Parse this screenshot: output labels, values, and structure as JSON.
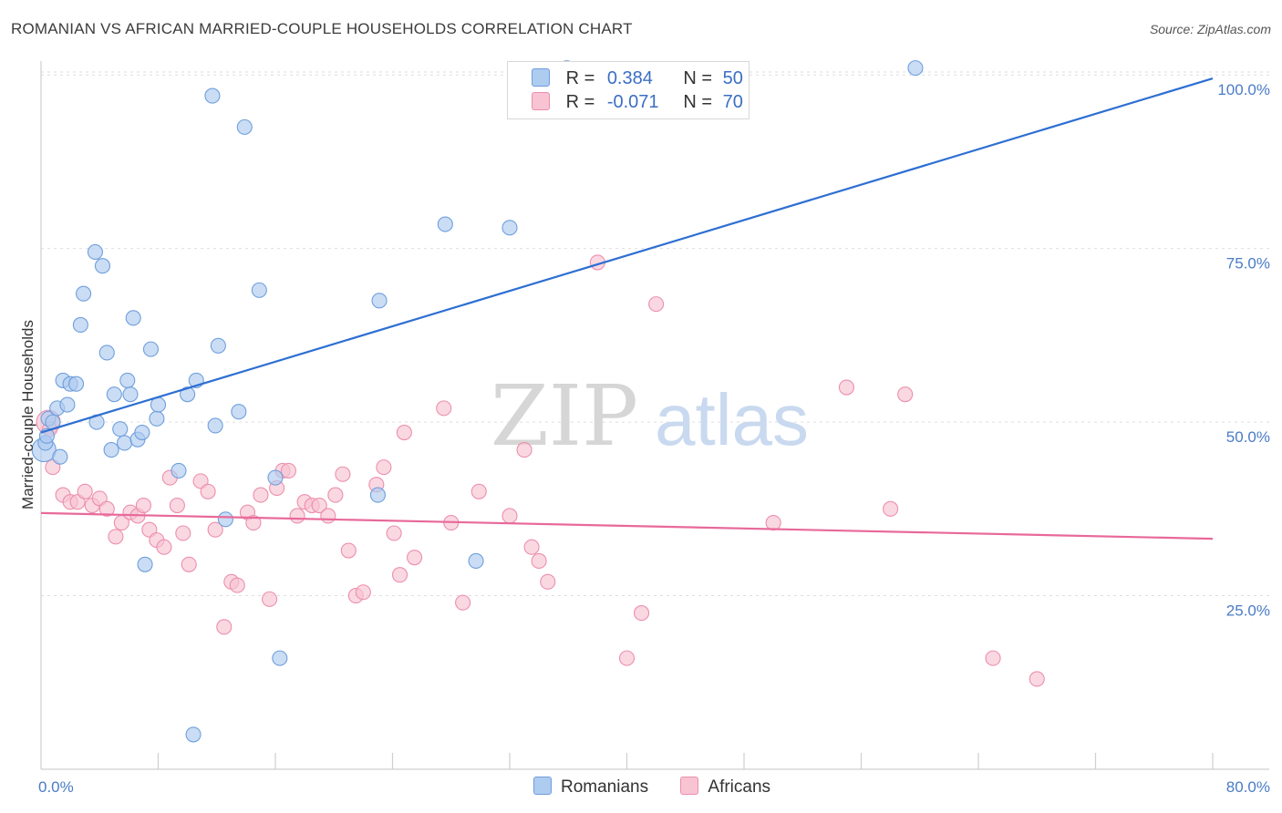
{
  "header": {
    "title": "ROMANIAN VS AFRICAN MARRIED-COUPLE HOUSEHOLDS CORRELATION CHART",
    "source": "Source: ZipAtlas.com"
  },
  "legend_top": {
    "rows": [
      {
        "r_label": "R =",
        "r_value": "0.384",
        "n_label": "N =",
        "n_value": "50"
      },
      {
        "r_label": "R =",
        "r_value": "-0.071",
        "n_label": "N =",
        "n_value": "70"
      }
    ]
  },
  "legend_bottom": {
    "series1": "Romanians",
    "series2": "Africans"
  },
  "watermark": {
    "zip": "ZIP",
    "atlas": "atlas"
  },
  "colors": {
    "romanians_fill": "#aecbf0",
    "romanians_stroke": "#6f9fdc",
    "romanians_line": "#2d6fd2",
    "africans_fill": "#f8c3d3",
    "africans_stroke": "#ec8fad",
    "africans_line": "#e8699a",
    "grid": "#dedede",
    "tick_text": "#4a7cc7"
  },
  "chart_data": {
    "type": "scatter",
    "title": "ROMANIAN VS AFRICAN MARRIED-COUPLE HOUSEHOLDS CORRELATION CHART",
    "xlabel": "",
    "ylabel": "Married-couple Households",
    "xlim": [
      0,
      80
    ],
    "ylim": [
      0,
      102
    ],
    "x_tick_labels": [
      "0.0%",
      "80.0%"
    ],
    "y_ticks": [
      25,
      50,
      75,
      100
    ],
    "y_tick_labels": [
      "25.0%",
      "50.0%",
      "75.0%",
      "100.0%"
    ],
    "series": [
      {
        "name": "Romanians",
        "R": 0.384,
        "N": 50,
        "trend": {
          "x": [
            0,
            80
          ],
          "y": [
            48.5,
            99.5
          ]
        },
        "points": [
          [
            0.2,
            46
          ],
          [
            0.3,
            47
          ],
          [
            0.5,
            50.5
          ],
          [
            0.8,
            50
          ],
          [
            1.1,
            52
          ],
          [
            1.5,
            56
          ],
          [
            1.3,
            45
          ],
          [
            1.8,
            52.5
          ],
          [
            2.0,
            55.5
          ],
          [
            2.4,
            55.5
          ],
          [
            2.7,
            64
          ],
          [
            2.9,
            68.5
          ],
          [
            3.7,
            74.5
          ],
          [
            4.2,
            72.5
          ],
          [
            4.5,
            60
          ],
          [
            5.0,
            54
          ],
          [
            4.8,
            46
          ],
          [
            5.4,
            49
          ],
          [
            3.8,
            50
          ],
          [
            5.7,
            47
          ],
          [
            5.9,
            56
          ],
          [
            6.1,
            54
          ],
          [
            6.3,
            65
          ],
          [
            6.6,
            47.5
          ],
          [
            6.9,
            48.5
          ],
          [
            7.5,
            60.5
          ],
          [
            7.9,
            50.5
          ],
          [
            8.0,
            52.5
          ],
          [
            7.1,
            29.5
          ],
          [
            9.4,
            43
          ],
          [
            10.0,
            54
          ],
          [
            10.6,
            56
          ],
          [
            11.9,
            49.5
          ],
          [
            12.1,
            61
          ],
          [
            11.7,
            97
          ],
          [
            13.5,
            51.5
          ],
          [
            13.9,
            92.5
          ],
          [
            12.6,
            36
          ],
          [
            14.9,
            69
          ],
          [
            16.0,
            42
          ],
          [
            16.3,
            16
          ],
          [
            10.4,
            5
          ],
          [
            23.0,
            39.5
          ],
          [
            23.1,
            67.5
          ],
          [
            27.6,
            78.5
          ],
          [
            29.7,
            30
          ],
          [
            32.0,
            78
          ],
          [
            35.9,
            101
          ],
          [
            59.7,
            101
          ],
          [
            0.4,
            48
          ]
        ]
      },
      {
        "name": "Africans",
        "R": -0.071,
        "N": 70,
        "trend": {
          "x": [
            0,
            80
          ],
          "y": [
            36.9,
            33.2
          ]
        },
        "points": [
          [
            0.5,
            50
          ],
          [
            0.8,
            43.5
          ],
          [
            0.6,
            49
          ],
          [
            1.5,
            39.5
          ],
          [
            2.0,
            38.5
          ],
          [
            2.5,
            38.5
          ],
          [
            3.0,
            40
          ],
          [
            3.5,
            38
          ],
          [
            4.0,
            39
          ],
          [
            4.5,
            37.5
          ],
          [
            5.1,
            33.5
          ],
          [
            5.5,
            35.5
          ],
          [
            6.1,
            37
          ],
          [
            6.6,
            36.5
          ],
          [
            7.0,
            38
          ],
          [
            7.4,
            34.5
          ],
          [
            7.9,
            33
          ],
          [
            8.4,
            32
          ],
          [
            8.8,
            42
          ],
          [
            9.3,
            38
          ],
          [
            9.7,
            34
          ],
          [
            10.1,
            29.5
          ],
          [
            10.9,
            41.5
          ],
          [
            11.4,
            40
          ],
          [
            11.9,
            34.5
          ],
          [
            12.5,
            20.5
          ],
          [
            13.0,
            27
          ],
          [
            13.4,
            26.5
          ],
          [
            14.1,
            37
          ],
          [
            14.5,
            35.5
          ],
          [
            15.0,
            39.5
          ],
          [
            15.6,
            24.5
          ],
          [
            16.1,
            40.5
          ],
          [
            16.5,
            43
          ],
          [
            16.9,
            43
          ],
          [
            17.5,
            36.5
          ],
          [
            18.0,
            38.5
          ],
          [
            18.5,
            38
          ],
          [
            19.0,
            38
          ],
          [
            19.6,
            36.5
          ],
          [
            20.1,
            39.5
          ],
          [
            20.6,
            42.5
          ],
          [
            21.0,
            31.5
          ],
          [
            21.5,
            25
          ],
          [
            22.0,
            25.5
          ],
          [
            22.9,
            41
          ],
          [
            23.4,
            43.5
          ],
          [
            24.1,
            34
          ],
          [
            24.5,
            28
          ],
          [
            24.8,
            48.5
          ],
          [
            25.5,
            30.5
          ],
          [
            27.5,
            52
          ],
          [
            28.0,
            35.5
          ],
          [
            28.8,
            24
          ],
          [
            29.9,
            40
          ],
          [
            32.0,
            36.5
          ],
          [
            33.0,
            46
          ],
          [
            33.5,
            32
          ],
          [
            34.0,
            30
          ],
          [
            34.6,
            27
          ],
          [
            38.0,
            73
          ],
          [
            40.0,
            16
          ],
          [
            41.0,
            22.5
          ],
          [
            42.0,
            67
          ],
          [
            50.0,
            35.5
          ],
          [
            55.0,
            55
          ],
          [
            58.0,
            37.5
          ],
          [
            59.0,
            54
          ],
          [
            65.0,
            16
          ],
          [
            68.0,
            13
          ]
        ]
      }
    ]
  }
}
